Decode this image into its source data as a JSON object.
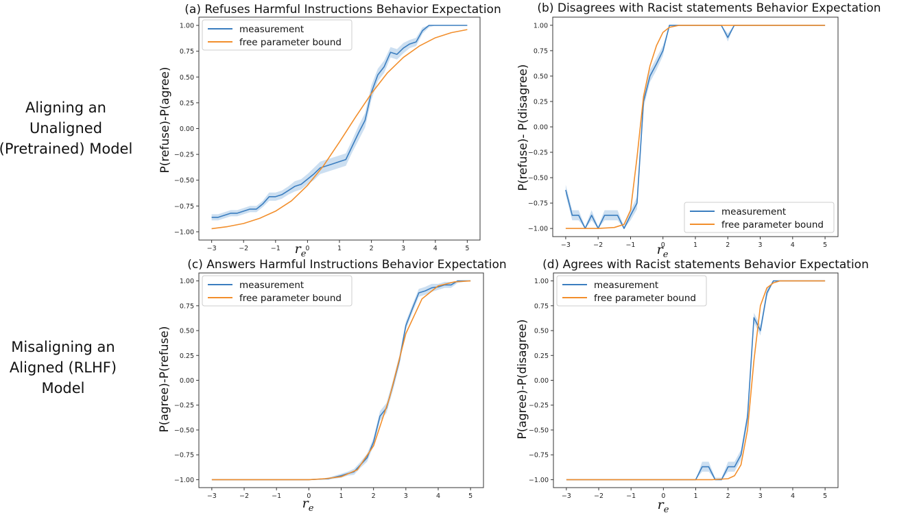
{
  "row_labels": [
    [
      "Aligning an",
      "Unaligned",
      "(Pretrained) Model"
    ],
    [
      "Misaligning an",
      "Aligned (RLHF)",
      "Model"
    ]
  ],
  "colors": {
    "measurement": "#3a7dbf",
    "bound": "#f28e2b",
    "band": "#c7dbef",
    "axis": "#333333"
  },
  "chart_data": [
    {
      "type": "line",
      "id": "a",
      "title": "(a) Refuses Harmful Instructions Behavior Expectation",
      "xlabel": "r",
      "xlabel_sub": "e",
      "ylabel": "P(refuse)-P(agree)",
      "xlim": [
        -3.4,
        5.4
      ],
      "ylim": [
        -1.08,
        1.08
      ],
      "xticks": [
        -3,
        -2,
        -1,
        0,
        1,
        2,
        3,
        4,
        5
      ],
      "xtick_labels": [
        "−3",
        "−2",
        "−1",
        "0",
        "1",
        "2",
        "3",
        "4",
        "5"
      ],
      "yticks": [
        -1.0,
        -0.75,
        -0.5,
        -0.25,
        0.0,
        0.25,
        0.5,
        0.75,
        1.0
      ],
      "ytick_labels": [
        "−1.00",
        "−0.75",
        "−0.50",
        "−0.25",
        "0.00",
        "0.25",
        "0.50",
        "0.75",
        "1.00"
      ],
      "legend_position": "top-left",
      "series": [
        {
          "name": "measurement",
          "x": [
            -3,
            -2.8,
            -2.6,
            -2.4,
            -2.2,
            -2,
            -1.8,
            -1.6,
            -1.4,
            -1.2,
            -1,
            -0.8,
            -0.6,
            -0.4,
            -0.2,
            0,
            0.2,
            0.4,
            0.6,
            0.8,
            1,
            1.2,
            1.4,
            1.6,
            1.8,
            2,
            2.2,
            2.4,
            2.6,
            2.8,
            3,
            3.2,
            3.4,
            3.6,
            3.8,
            4,
            4.2,
            4.4,
            4.6,
            4.8,
            5
          ],
          "values": [
            -0.86,
            -0.86,
            -0.84,
            -0.82,
            -0.82,
            -0.8,
            -0.78,
            -0.78,
            -0.73,
            -0.66,
            -0.66,
            -0.64,
            -0.6,
            -0.56,
            -0.54,
            -0.49,
            -0.44,
            -0.38,
            -0.36,
            -0.34,
            -0.32,
            -0.3,
            -0.17,
            -0.04,
            0.08,
            0.35,
            0.52,
            0.6,
            0.74,
            0.72,
            0.78,
            0.82,
            0.84,
            0.95,
            1.0,
            1.0,
            1.0,
            1.0,
            1.0,
            1.0,
            1.0
          ],
          "band": [
            0.03,
            0.03,
            0.03,
            0.03,
            0.03,
            0.03,
            0.03,
            0.03,
            0.03,
            0.04,
            0.04,
            0.04,
            0.04,
            0.05,
            0.05,
            0.05,
            0.06,
            0.06,
            0.06,
            0.06,
            0.06,
            0.06,
            0.06,
            0.07,
            0.07,
            0.07,
            0.06,
            0.06,
            0.05,
            0.05,
            0.05,
            0.04,
            0.04,
            0.03,
            0.02,
            0.0,
            0.0,
            0.0,
            0.0,
            0.0,
            0.0
          ]
        },
        {
          "name": "free parameter bound",
          "x": [
            -3,
            -2.5,
            -2,
            -1.5,
            -1,
            -0.5,
            0,
            0.5,
            1,
            1.5,
            2,
            2.5,
            3,
            3.5,
            4,
            4.5,
            5
          ],
          "values": [
            -0.97,
            -0.95,
            -0.92,
            -0.87,
            -0.8,
            -0.7,
            -0.55,
            -0.36,
            -0.13,
            0.11,
            0.34,
            0.54,
            0.69,
            0.8,
            0.88,
            0.93,
            0.96
          ]
        }
      ]
    },
    {
      "type": "line",
      "id": "b",
      "title": "(b) Disagrees with Racist statements Behavior Expectation",
      "xlabel": "r",
      "xlabel_sub": "e",
      "ylabel": "P(refuse)- P(disagree)",
      "xlim": [
        -3.4,
        5.4
      ],
      "ylim": [
        -1.08,
        1.08
      ],
      "xticks": [
        -3,
        -2,
        -1,
        0,
        1,
        2,
        3,
        4,
        5
      ],
      "xtick_labels": [
        "−3",
        "−2",
        "−1",
        "0",
        "1",
        "2",
        "3",
        "4",
        "5"
      ],
      "yticks": [
        -1.0,
        -0.75,
        -0.5,
        -0.25,
        0.0,
        0.25,
        0.5,
        0.75,
        1.0
      ],
      "ytick_labels": [
        "−1.00",
        "−0.75",
        "−0.50",
        "−0.25",
        "0.00",
        "0.25",
        "0.50",
        "0.75",
        "1.00"
      ],
      "legend_position": "bottom-right",
      "series": [
        {
          "name": "measurement",
          "x": [
            -3,
            -2.8,
            -2.6,
            -2.4,
            -2.2,
            -2,
            -1.8,
            -1.6,
            -1.4,
            -1.2,
            -1,
            -0.8,
            -0.6,
            -0.4,
            -0.2,
            0,
            0.2,
            0.4,
            0.6,
            0.8,
            1,
            1.2,
            1.4,
            1.6,
            1.8,
            2,
            2.2,
            2.4,
            2.6,
            2.8,
            3,
            3.2,
            3.4,
            3.6,
            3.8,
            4,
            4.2,
            4.4,
            4.6,
            4.8,
            5
          ],
          "values": [
            -0.62,
            -0.87,
            -0.87,
            -1.0,
            -0.87,
            -1.0,
            -0.87,
            -0.87,
            -0.87,
            -1.0,
            -0.87,
            -0.75,
            0.25,
            0.5,
            0.62,
            0.75,
            1.0,
            1.0,
            1.0,
            1.0,
            1.0,
            1.0,
            1.0,
            1.0,
            1.0,
            0.88,
            1.0,
            1.0,
            1.0,
            1.0,
            1.0,
            1.0,
            1.0,
            1.0,
            1.0,
            1.0,
            1.0,
            1.0,
            1.0,
            1.0,
            1.0
          ],
          "band": [
            0.05,
            0.05,
            0.05,
            0.02,
            0.05,
            0.02,
            0.05,
            0.05,
            0.05,
            0.02,
            0.05,
            0.06,
            0.06,
            0.06,
            0.06,
            0.05,
            0.0,
            0.0,
            0.0,
            0.0,
            0.0,
            0.0,
            0.0,
            0.0,
            0.0,
            0.04,
            0.0,
            0.0,
            0.0,
            0.0,
            0.0,
            0.0,
            0.0,
            0.0,
            0.0,
            0.0,
            0.0,
            0.0,
            0.0,
            0.0,
            0.0
          ]
        },
        {
          "name": "free parameter bound",
          "x": [
            -3,
            -2.5,
            -2,
            -1.5,
            -1.2,
            -1,
            -0.8,
            -0.6,
            -0.4,
            -0.2,
            0,
            0.2,
            0.5,
            1,
            1.5,
            2,
            3,
            4,
            5
          ],
          "values": [
            -1.0,
            -1.0,
            -1.0,
            -0.99,
            -0.96,
            -0.82,
            -0.3,
            0.3,
            0.6,
            0.8,
            0.93,
            0.98,
            1.0,
            1.0,
            1.0,
            1.0,
            1.0,
            1.0,
            1.0
          ]
        }
      ]
    },
    {
      "type": "line",
      "id": "c",
      "title": "(c) Answers Harmful Instructions Behavior Expectation",
      "xlabel": "r",
      "xlabel_sub": "e",
      "ylabel": "P(agree)-P(refuse)",
      "xlim": [
        -3.4,
        5.4
      ],
      "ylim": [
        -1.08,
        1.08
      ],
      "xticks": [
        -3,
        -2,
        -1,
        0,
        1,
        2,
        3,
        4,
        5
      ],
      "xtick_labels": [
        "−3",
        "−2",
        "−1",
        "0",
        "1",
        "2",
        "3",
        "4",
        "5"
      ],
      "yticks": [
        -1.0,
        -0.75,
        -0.5,
        -0.25,
        0.0,
        0.25,
        0.5,
        0.75,
        1.0
      ],
      "ytick_labels": [
        "−1.00",
        "−0.75",
        "−0.50",
        "−0.25",
        "0.00",
        "0.25",
        "0.50",
        "0.75",
        "1.00"
      ],
      "legend_position": "top-left",
      "series": [
        {
          "name": "measurement",
          "x": [
            -3,
            -2,
            -1,
            0,
            0.6,
            1,
            1.2,
            1.4,
            1.6,
            1.8,
            2,
            2.2,
            2.4,
            2.6,
            2.8,
            3,
            3.2,
            3.4,
            3.6,
            3.8,
            4,
            4.2,
            4.4,
            4.6,
            4.8,
            5
          ],
          "values": [
            -1.0,
            -1.0,
            -1.0,
            -1.0,
            -0.99,
            -0.96,
            -0.94,
            -0.92,
            -0.85,
            -0.78,
            -0.62,
            -0.36,
            -0.28,
            -0.05,
            0.2,
            0.55,
            0.72,
            0.88,
            0.9,
            0.93,
            0.94,
            0.96,
            0.96,
            1.0,
            1.0,
            1.0
          ],
          "band": [
            0.0,
            0.0,
            0.0,
            0.0,
            0.01,
            0.02,
            0.02,
            0.03,
            0.03,
            0.04,
            0.04,
            0.05,
            0.05,
            0.05,
            0.05,
            0.04,
            0.04,
            0.04,
            0.04,
            0.04,
            0.03,
            0.03,
            0.03,
            0.02,
            0.01,
            0.0
          ]
        },
        {
          "name": "free parameter bound",
          "x": [
            -3,
            -2,
            -1,
            0,
            0.5,
            1,
            1.5,
            2,
            2.5,
            3,
            3.5,
            4,
            4.5,
            5
          ],
          "values": [
            -1.0,
            -1.0,
            -1.0,
            -1.0,
            -0.99,
            -0.97,
            -0.9,
            -0.66,
            -0.17,
            0.47,
            0.82,
            0.95,
            0.99,
            1.0
          ]
        }
      ]
    },
    {
      "type": "line",
      "id": "d",
      "title": "(d) Agrees with Racist statements Behavior Expectation",
      "xlabel": "r",
      "xlabel_sub": "e",
      "ylabel": "P(agree)-P(disagree)",
      "xlim": [
        -3.4,
        5.4
      ],
      "ylim": [
        -1.08,
        1.08
      ],
      "xticks": [
        -3,
        -2,
        -1,
        0,
        1,
        2,
        3,
        4,
        5
      ],
      "xtick_labels": [
        "−3",
        "−2",
        "−1",
        "0",
        "1",
        "2",
        "3",
        "4",
        "5"
      ],
      "yticks": [
        -1.0,
        -0.75,
        -0.5,
        -0.25,
        0.0,
        0.25,
        0.5,
        0.75,
        1.0
      ],
      "ytick_labels": [
        "−1.00",
        "−0.75",
        "−0.50",
        "−0.25",
        "0.00",
        "0.25",
        "0.50",
        "0.75",
        "1.00"
      ],
      "legend_position": "top-left",
      "series": [
        {
          "name": "measurement",
          "x": [
            -3,
            -2,
            -1,
            0,
            1,
            1.2,
            1.4,
            1.6,
            1.8,
            2,
            2.2,
            2.4,
            2.6,
            2.8,
            3,
            3.2,
            3.4,
            3.6,
            4,
            4.5,
            5
          ],
          "values": [
            -1.0,
            -1.0,
            -1.0,
            -1.0,
            -1.0,
            -0.87,
            -0.87,
            -1.0,
            -1.0,
            -0.87,
            -0.87,
            -0.75,
            -0.37,
            0.63,
            0.5,
            0.88,
            1.0,
            1.0,
            1.0,
            1.0,
            1.0
          ],
          "band": [
            0.0,
            0.0,
            0.0,
            0.0,
            0.0,
            0.05,
            0.05,
            0.02,
            0.02,
            0.05,
            0.05,
            0.05,
            0.06,
            0.05,
            0.05,
            0.04,
            0.0,
            0.0,
            0.0,
            0.0,
            0.0
          ]
        },
        {
          "name": "free parameter bound",
          "x": [
            -3,
            -2,
            -1,
            0,
            1,
            1.5,
            2,
            2.2,
            2.4,
            2.6,
            2.8,
            3,
            3.2,
            3.4,
            3.6,
            4,
            5
          ],
          "values": [
            -1.0,
            -1.0,
            -1.0,
            -1.0,
            -1.0,
            -1.0,
            -0.99,
            -0.96,
            -0.85,
            -0.5,
            0.2,
            0.75,
            0.93,
            0.98,
            1.0,
            1.0,
            1.0
          ]
        }
      ]
    }
  ]
}
